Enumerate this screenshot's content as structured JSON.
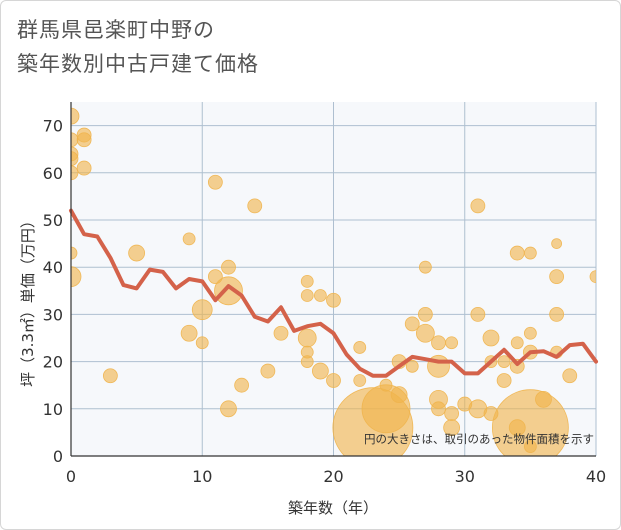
{
  "chart_data": {
    "type": "scatter",
    "title_lines": [
      "群馬県邑楽町中野の",
      "築年数別中古戸建て価格"
    ],
    "xlabel": "築年数（年）",
    "ylabel": "坪（3.3㎡）単価（万円）",
    "xlim": [
      0,
      40
    ],
    "ylim": [
      0,
      75
    ],
    "xticks": [
      0,
      10,
      20,
      30,
      40
    ],
    "yticks": [
      0,
      10,
      20,
      30,
      40,
      50,
      60,
      70
    ],
    "grid": true,
    "note": "円の大きさは、取引のあった物件面積を示す",
    "colors": {
      "bubble": "#f0b44c",
      "line": "#d4624a",
      "grid": "#aebfd0",
      "plot_bg": "#f6f8fb"
    },
    "series": [
      {
        "kind": "bubble",
        "points": [
          {
            "x": 0,
            "y": 72,
            "s": 8
          },
          {
            "x": 0,
            "y": 67,
            "s": 7
          },
          {
            "x": 0,
            "y": 64,
            "s": 7
          },
          {
            "x": 0,
            "y": 63,
            "s": 7
          },
          {
            "x": 0,
            "y": 60,
            "s": 7
          },
          {
            "x": 0,
            "y": 43,
            "s": 6
          },
          {
            "x": 0,
            "y": 38,
            "s": 10
          },
          {
            "x": 1,
            "y": 68,
            "s": 7
          },
          {
            "x": 1,
            "y": 67,
            "s": 7
          },
          {
            "x": 1,
            "y": 61,
            "s": 7
          },
          {
            "x": 3,
            "y": 17,
            "s": 7
          },
          {
            "x": 5,
            "y": 43,
            "s": 8
          },
          {
            "x": 9,
            "y": 46,
            "s": 6
          },
          {
            "x": 9,
            "y": 26,
            "s": 8
          },
          {
            "x": 10,
            "y": 31,
            "s": 10
          },
          {
            "x": 10,
            "y": 24,
            "s": 6
          },
          {
            "x": 11,
            "y": 58,
            "s": 7
          },
          {
            "x": 11,
            "y": 38,
            "s": 7
          },
          {
            "x": 12,
            "y": 40,
            "s": 7
          },
          {
            "x": 12,
            "y": 35,
            "s": 14
          },
          {
            "x": 12,
            "y": 10,
            "s": 8
          },
          {
            "x": 13,
            "y": 15,
            "s": 7
          },
          {
            "x": 14,
            "y": 53,
            "s": 7
          },
          {
            "x": 15,
            "y": 18,
            "s": 7
          },
          {
            "x": 16,
            "y": 26,
            "s": 7
          },
          {
            "x": 18,
            "y": 37,
            "s": 6
          },
          {
            "x": 18,
            "y": 34,
            "s": 6
          },
          {
            "x": 18,
            "y": 25,
            "s": 9
          },
          {
            "x": 18,
            "y": 22,
            "s": 6
          },
          {
            "x": 18,
            "y": 20,
            "s": 6
          },
          {
            "x": 19,
            "y": 34,
            "s": 6
          },
          {
            "x": 19,
            "y": 18,
            "s": 8
          },
          {
            "x": 20,
            "y": 33,
            "s": 7
          },
          {
            "x": 20,
            "y": 16,
            "s": 7
          },
          {
            "x": 22,
            "y": 23,
            "s": 6
          },
          {
            "x": 22,
            "y": 16,
            "s": 6
          },
          {
            "x": 23,
            "y": 6,
            "s": 40
          },
          {
            "x": 24,
            "y": 15,
            "s": 6
          },
          {
            "x": 24,
            "y": 10,
            "s": 24
          },
          {
            "x": 25,
            "y": 20,
            "s": 7
          },
          {
            "x": 25,
            "y": 13,
            "s": 8
          },
          {
            "x": 26,
            "y": 19,
            "s": 6
          },
          {
            "x": 26,
            "y": 28,
            "s": 7
          },
          {
            "x": 27,
            "y": 40,
            "s": 6
          },
          {
            "x": 27,
            "y": 30,
            "s": 7
          },
          {
            "x": 27,
            "y": 26,
            "s": 9
          },
          {
            "x": 28,
            "y": 24,
            "s": 7
          },
          {
            "x": 28,
            "y": 19,
            "s": 11
          },
          {
            "x": 28,
            "y": 12,
            "s": 9
          },
          {
            "x": 28,
            "y": 10,
            "s": 7
          },
          {
            "x": 29,
            "y": 24,
            "s": 6
          },
          {
            "x": 29,
            "y": 9,
            "s": 7
          },
          {
            "x": 29,
            "y": 6,
            "s": 8
          },
          {
            "x": 30,
            "y": 11,
            "s": 7
          },
          {
            "x": 31,
            "y": 53,
            "s": 7
          },
          {
            "x": 31,
            "y": 30,
            "s": 7
          },
          {
            "x": 31,
            "y": 10,
            "s": 9
          },
          {
            "x": 32,
            "y": 25,
            "s": 8
          },
          {
            "x": 32,
            "y": 20,
            "s": 6
          },
          {
            "x": 32,
            "y": 9,
            "s": 7
          },
          {
            "x": 33,
            "y": 20,
            "s": 6
          },
          {
            "x": 33,
            "y": 16,
            "s": 7
          },
          {
            "x": 34,
            "y": 43,
            "s": 7
          },
          {
            "x": 34,
            "y": 24,
            "s": 6
          },
          {
            "x": 34,
            "y": 19,
            "s": 7
          },
          {
            "x": 34,
            "y": 6,
            "s": 8
          },
          {
            "x": 35,
            "y": 43,
            "s": 6
          },
          {
            "x": 35,
            "y": 26,
            "s": 6
          },
          {
            "x": 35,
            "y": 22,
            "s": 7
          },
          {
            "x": 35,
            "y": 6,
            "s": 38
          },
          {
            "x": 35,
            "y": 2,
            "s": 6
          },
          {
            "x": 36,
            "y": 12,
            "s": 8
          },
          {
            "x": 37,
            "y": 45,
            "s": 5
          },
          {
            "x": 37,
            "y": 38,
            "s": 7
          },
          {
            "x": 37,
            "y": 30,
            "s": 7
          },
          {
            "x": 37,
            "y": 22,
            "s": 6
          },
          {
            "x": 38,
            "y": 17,
            "s": 7
          },
          {
            "x": 40,
            "y": 38,
            "s": 6
          }
        ]
      },
      {
        "kind": "line",
        "x": [
          0,
          1,
          2,
          3,
          4,
          5,
          6,
          7,
          8,
          9,
          10,
          11,
          12,
          13,
          14,
          15,
          16,
          17,
          18,
          19,
          20,
          21,
          22,
          23,
          24,
          25,
          26,
          27,
          28,
          29,
          30,
          31,
          32,
          33,
          34,
          35,
          36,
          37,
          38,
          39,
          40
        ],
        "y": [
          52,
          47,
          46.5,
          42,
          36.2,
          35.5,
          39.5,
          39,
          35.5,
          37.5,
          37,
          33,
          36,
          34,
          29.5,
          28.5,
          31.5,
          26.5,
          27.5,
          28,
          26,
          21.5,
          18.5,
          17,
          17,
          19,
          21,
          20.5,
          20,
          20,
          17.5,
          17.5,
          20,
          22.5,
          19.5,
          22,
          22.2,
          21,
          23.5,
          23.8,
          20
        ]
      }
    ]
  }
}
